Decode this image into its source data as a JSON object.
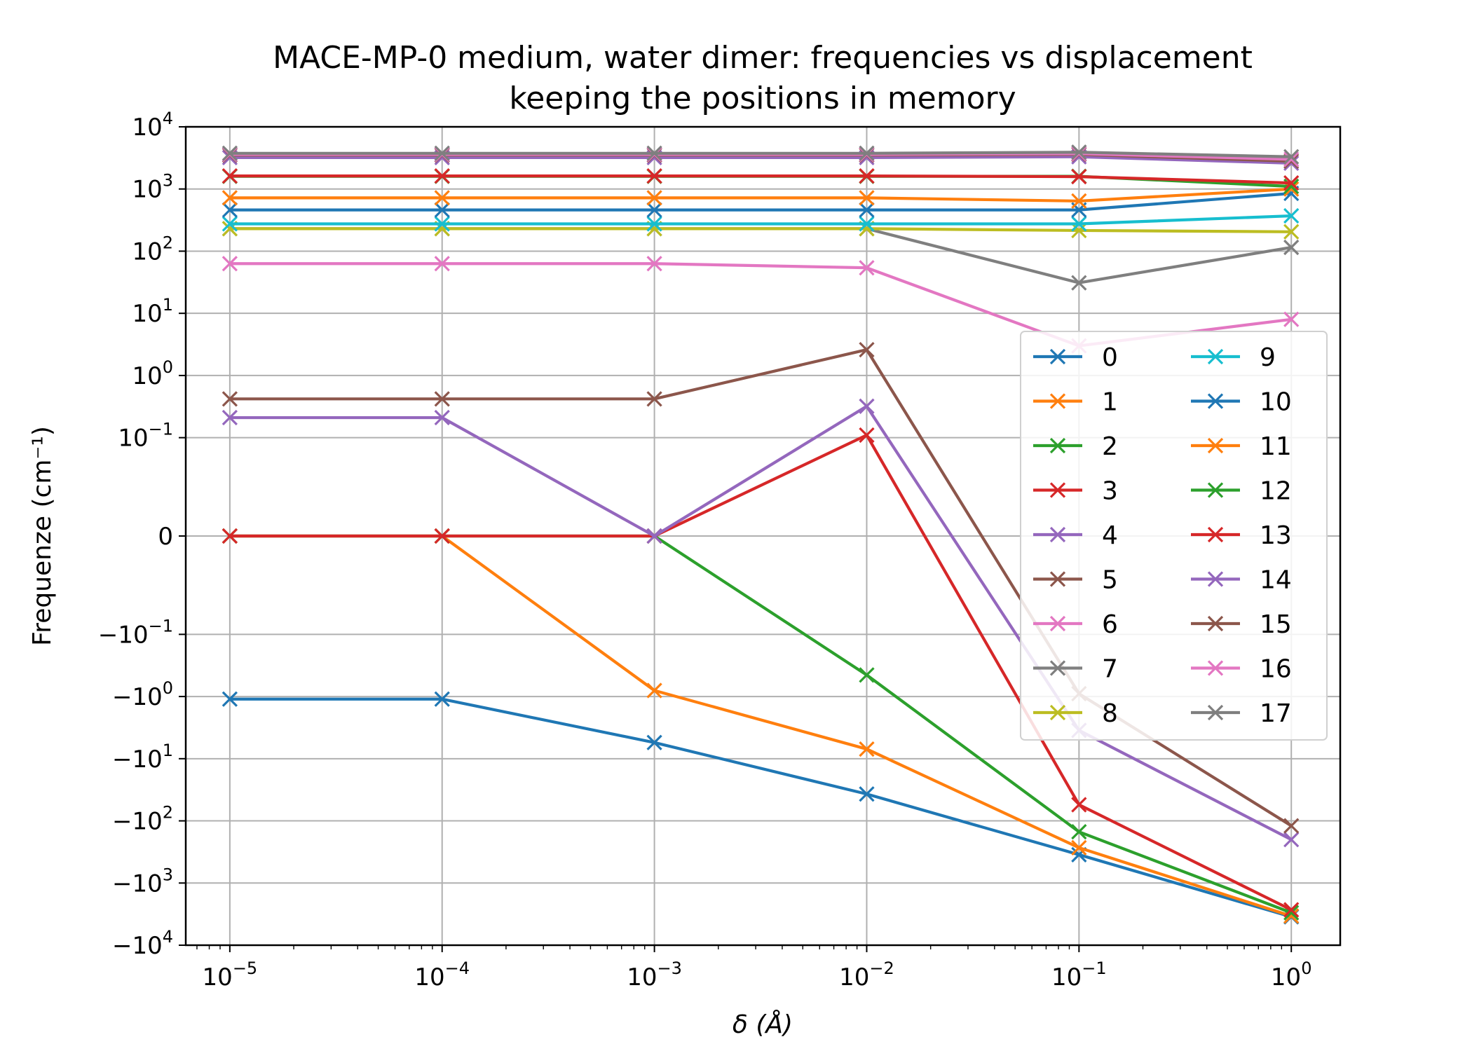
{
  "chart_data": {
    "type": "line",
    "title_line1": "MACE-MP-0 medium, water dimer: frequencies vs displacement",
    "title_line2": "keeping the positions in memory",
    "xlabel": "δ (Å)",
    "ylabel": "Frequenze (cm⁻¹)",
    "xscale": "log",
    "yscale": "symlog",
    "symlog_linthresh": 0.1,
    "x": [
      1e-05,
      0.0001,
      0.001,
      0.01,
      0.1,
      1
    ],
    "xlim": [
      6.2e-06,
      1.7
    ],
    "ylim": [
      -10000,
      10000
    ],
    "x_tick_labels": [
      {
        "base": "10",
        "exp": "−5"
      },
      {
        "base": "10",
        "exp": "−4"
      },
      {
        "base": "10",
        "exp": "−3"
      },
      {
        "base": "10",
        "exp": "−2"
      },
      {
        "base": "10",
        "exp": "−1"
      },
      {
        "base": "10",
        "exp": "0"
      }
    ],
    "y_ticks": [
      {
        "value": 10000,
        "base": "10",
        "exp": "4"
      },
      {
        "value": 1000,
        "base": "10",
        "exp": "3"
      },
      {
        "value": 100,
        "base": "10",
        "exp": "2"
      },
      {
        "value": 10,
        "base": "10",
        "exp": "1"
      },
      {
        "value": 1,
        "base": "10",
        "exp": "0"
      },
      {
        "value": 0.1,
        "base": "10",
        "exp": "−1"
      },
      {
        "value": 0,
        "base": "0",
        "exp": ""
      },
      {
        "value": -0.1,
        "base": "−10",
        "exp": "−1"
      },
      {
        "value": -1,
        "base": "−10",
        "exp": "0"
      },
      {
        "value": -10,
        "base": "−10",
        "exp": "1"
      },
      {
        "value": -100,
        "base": "−10",
        "exp": "2"
      },
      {
        "value": -1000,
        "base": "−10",
        "exp": "3"
      },
      {
        "value": -10000,
        "base": "−10",
        "exp": "4"
      }
    ],
    "grid": true,
    "legend_position": "center-right",
    "legend_columns": 2,
    "marker": "x",
    "series": [
      {
        "name": "0",
        "color": "#1f77b4",
        "values": [
          -1.1,
          -1.1,
          -5.5,
          -37,
          -350,
          -3500
        ]
      },
      {
        "name": "1",
        "color": "#ff7f0e",
        "values": [
          0,
          0,
          -0.8,
          -7,
          -270,
          -3400
        ]
      },
      {
        "name": "2",
        "color": "#2ca02c",
        "values": [
          0,
          0,
          0,
          -0.45,
          -150,
          -3000
        ]
      },
      {
        "name": "3",
        "color": "#d62728",
        "values": [
          0,
          0,
          0,
          0.11,
          -55,
          -2700
        ]
      },
      {
        "name": "4",
        "color": "#9467bd",
        "values": [
          0.21,
          0.21,
          0,
          0.32,
          -3.5,
          -200
        ]
      },
      {
        "name": "5",
        "color": "#8c564b",
        "values": [
          0.42,
          0.42,
          0.42,
          2.6,
          -0.9,
          -120
        ]
      },
      {
        "name": "6",
        "color": "#e377c2",
        "values": [
          63,
          63,
          63,
          54,
          3,
          8
        ]
      },
      {
        "name": "7",
        "color": "#7f7f7f",
        "values": [
          230,
          230,
          230,
          230,
          31,
          115
        ]
      },
      {
        "name": "8",
        "color": "#bcbd22",
        "values": [
          230,
          230,
          230,
          230,
          215,
          205
        ]
      },
      {
        "name": "9",
        "color": "#17becf",
        "values": [
          275,
          275,
          275,
          275,
          275,
          370
        ]
      },
      {
        "name": "10",
        "color": "#1f77b4",
        "values": [
          460,
          460,
          460,
          460,
          460,
          850
        ]
      },
      {
        "name": "11",
        "color": "#ff7f0e",
        "values": [
          720,
          720,
          720,
          720,
          640,
          1000
        ]
      },
      {
        "name": "12",
        "color": "#2ca02c",
        "values": [
          1600,
          1600,
          1600,
          1600,
          1600,
          1100
        ]
      },
      {
        "name": "13",
        "color": "#d62728",
        "values": [
          1620,
          1620,
          1620,
          1620,
          1580,
          1250
        ]
      },
      {
        "name": "14",
        "color": "#9467bd",
        "values": [
          3200,
          3200,
          3200,
          3200,
          3300,
          2600
        ]
      },
      {
        "name": "15",
        "color": "#8c564b",
        "values": [
          3500,
          3500,
          3500,
          3500,
          3600,
          2800
        ]
      },
      {
        "name": "16",
        "color": "#e377c2",
        "values": [
          3600,
          3600,
          3600,
          3600,
          3700,
          3000
        ]
      },
      {
        "name": "17",
        "color": "#7f7f7f",
        "values": [
          3750,
          3750,
          3750,
          3750,
          3900,
          3300
        ]
      }
    ]
  }
}
